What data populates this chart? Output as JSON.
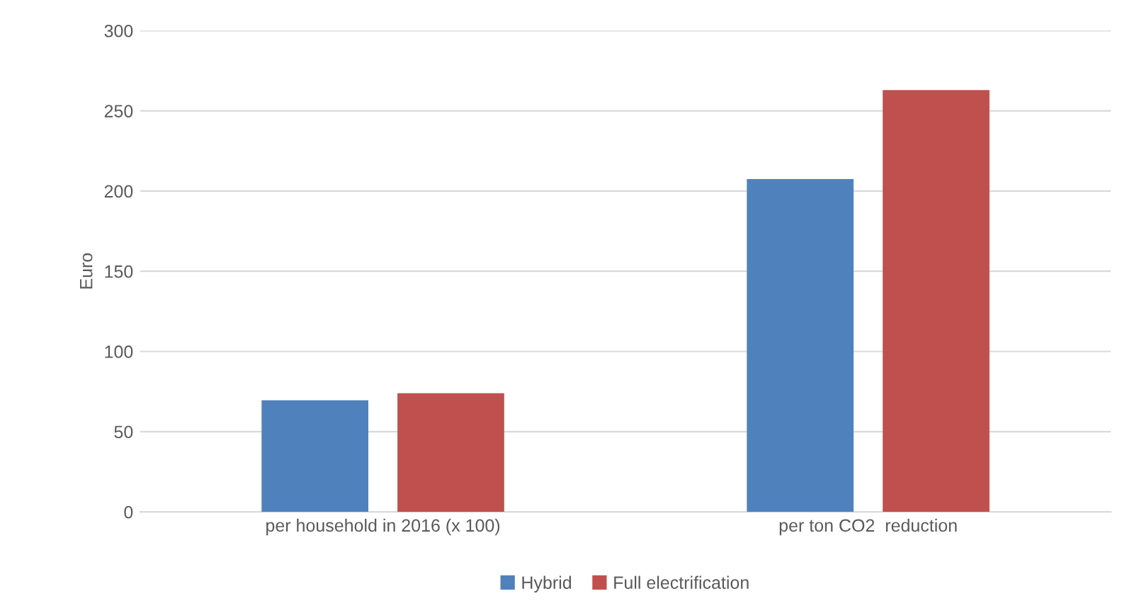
{
  "chart_data": {
    "type": "bar",
    "ylabel": "Euro",
    "categories": [
      "per household in 2016 (x 100)",
      "per ton CO2  reduction"
    ],
    "series": [
      {
        "name": "Hybrid",
        "color": "#4f81bd",
        "values": [
          69.5,
          207.5
        ]
      },
      {
        "name": "Full electrification",
        "color": "#c0504d",
        "values": [
          74,
          263
        ]
      }
    ],
    "ylim": [
      0,
      300
    ],
    "yticks": [
      0,
      50,
      100,
      150,
      200,
      250,
      300
    ],
    "grid": "y",
    "legend": "bottom"
  }
}
